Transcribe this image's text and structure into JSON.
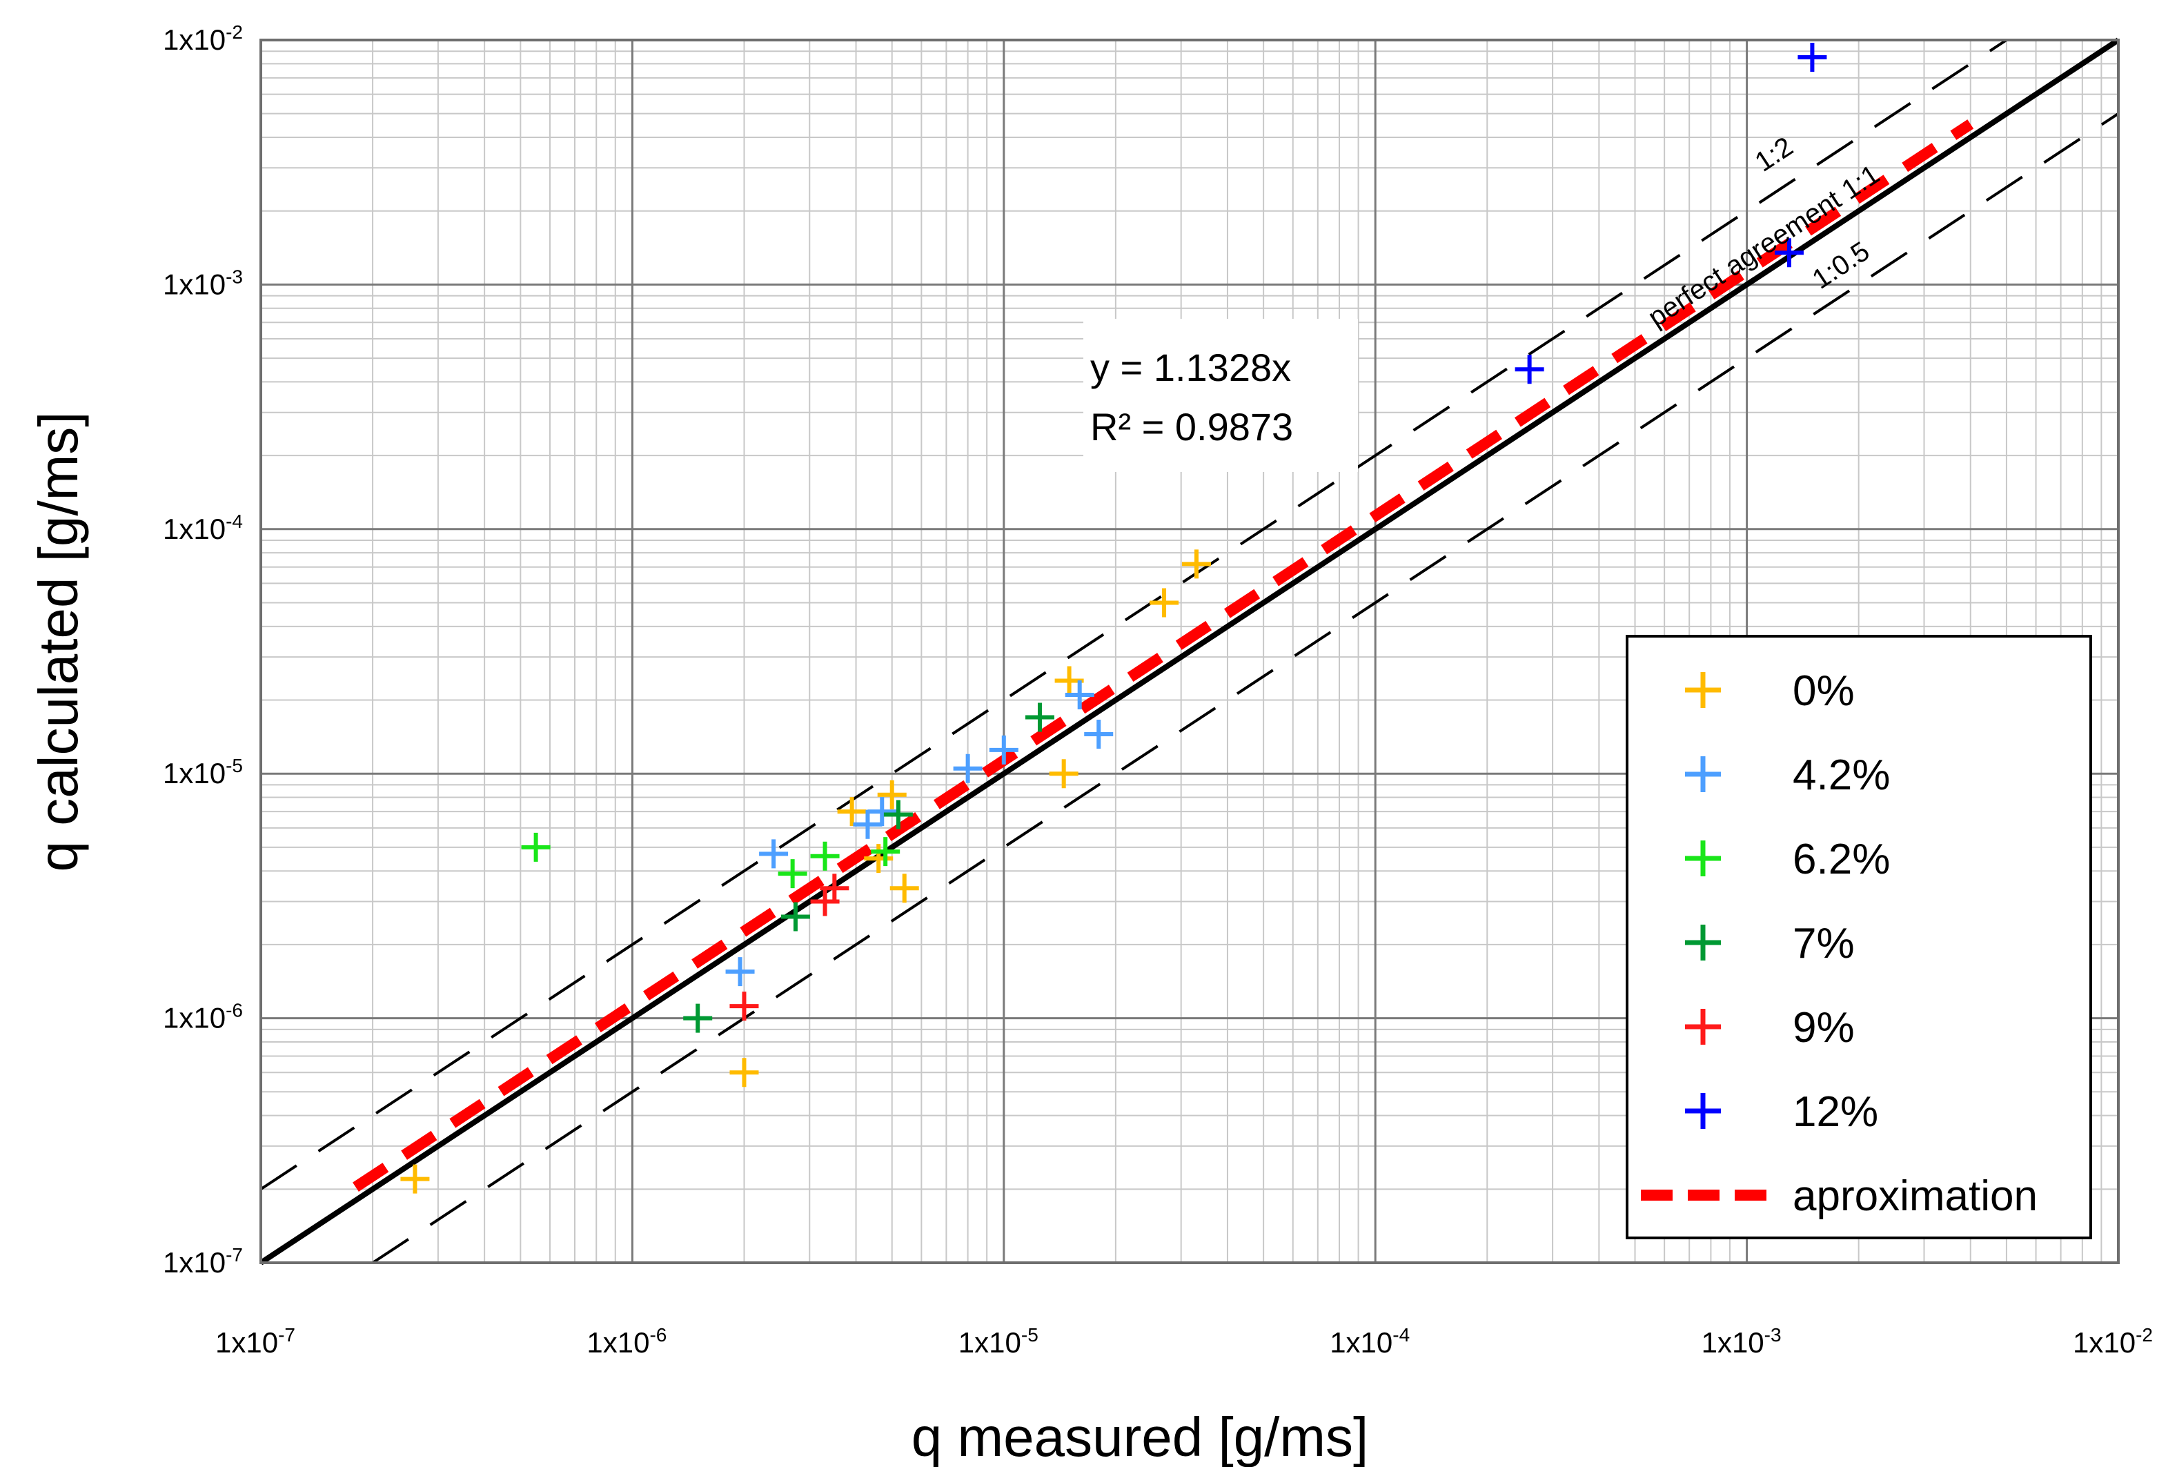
{
  "chart_data": {
    "type": "scatter",
    "scale": "log-log",
    "xlabel": "q  measured [g/ms]",
    "ylabel": "q  calculated [g/ms]",
    "xlim": [
      1e-07,
      0.01
    ],
    "ylim": [
      1e-07,
      0.01
    ],
    "x_ticks": [
      {
        "value": 1e-07,
        "base": "1x10",
        "exp": "-7"
      },
      {
        "value": 1e-06,
        "base": "1x10",
        "exp": "-6"
      },
      {
        "value": 1e-05,
        "base": "1x10",
        "exp": "-5"
      },
      {
        "value": 0.0001,
        "base": "1x10",
        "exp": "-4"
      },
      {
        "value": 0.001,
        "base": "1x10",
        "exp": "-3"
      },
      {
        "value": 0.01,
        "base": "1x10",
        "exp": "-2"
      }
    ],
    "y_ticks": [
      {
        "value": 1e-07,
        "base": "1x10",
        "exp": "-7"
      },
      {
        "value": 1e-06,
        "base": "1x10",
        "exp": "-6"
      },
      {
        "value": 1e-05,
        "base": "1x10",
        "exp": "-5"
      },
      {
        "value": 0.0001,
        "base": "1x10",
        "exp": "-4"
      },
      {
        "value": 0.001,
        "base": "1x10",
        "exp": "-3"
      },
      {
        "value": 0.01,
        "base": "1x10",
        "exp": "-2"
      }
    ],
    "grid": true,
    "legend_position": "lower-right",
    "series": [
      {
        "name": "0%",
        "color": "#ffbb00",
        "points": [
          [
            2.6e-07,
            2.2e-07
          ],
          [
            2e-06,
            6e-07
          ],
          [
            3.9e-06,
            7e-06
          ],
          [
            5e-06,
            8.2e-06
          ],
          [
            5.4e-06,
            3.4e-06
          ],
          [
            4.6e-06,
            4.5e-06
          ],
          [
            1.45e-05,
            1e-05
          ],
          [
            1.5e-05,
            2.4e-05
          ],
          [
            2.7e-05,
            5e-05
          ],
          [
            3.3e-05,
            7.2e-05
          ]
        ]
      },
      {
        "name": "4.2%",
        "color": "#4d9fff",
        "points": [
          [
            1.95e-06,
            1.55e-06
          ],
          [
            2.4e-06,
            4.7e-06
          ],
          [
            4.3e-06,
            6.2e-06
          ],
          [
            4.7e-06,
            7e-06
          ],
          [
            8e-06,
            1.05e-05
          ],
          [
            1e-05,
            1.25e-05
          ],
          [
            1.6e-05,
            2.1e-05
          ],
          [
            1.8e-05,
            1.45e-05
          ]
        ]
      },
      {
        "name": "6.2%",
        "color": "#19e619",
        "points": [
          [
            5.5e-07,
            5e-06
          ],
          [
            2.7e-06,
            3.9e-06
          ],
          [
            3.3e-06,
            4.6e-06
          ],
          [
            4.8e-06,
            4.8e-06
          ]
        ]
      },
      {
        "name": "7%",
        "color": "#009933",
        "points": [
          [
            1.5e-06,
            1e-06
          ],
          [
            2.75e-06,
            2.6e-06
          ],
          [
            5.2e-06,
            6.8e-06
          ],
          [
            1.25e-05,
            1.7e-05
          ]
        ]
      },
      {
        "name": "9%",
        "color": "#ff1a1a",
        "points": [
          [
            2e-06,
            1.12e-06
          ],
          [
            3.3e-06,
            3e-06
          ],
          [
            3.5e-06,
            3.4e-06
          ]
        ]
      },
      {
        "name": "12%",
        "color": "#0000ff",
        "points": [
          [
            0.00026,
            0.00045
          ],
          [
            0.0013,
            0.00135
          ],
          [
            0.0015,
            0.0085
          ]
        ]
      }
    ],
    "reference_lines": [
      {
        "label": "perfect agreement 1:1",
        "slope": 1.0,
        "style": "solid"
      },
      {
        "label": "1:2",
        "slope": 2.0,
        "style": "dashed"
      },
      {
        "label": "1:0.5",
        "slope": 0.5,
        "style": "dashed"
      }
    ],
    "fit": {
      "label": "aproximation",
      "slope": 1.1328,
      "range": [
        1.8e-07,
        0.004
      ],
      "color": "#ff0000"
    },
    "equation_box": {
      "line1": "y = 1.1328x",
      "line2": "R² = 0.9873"
    }
  }
}
